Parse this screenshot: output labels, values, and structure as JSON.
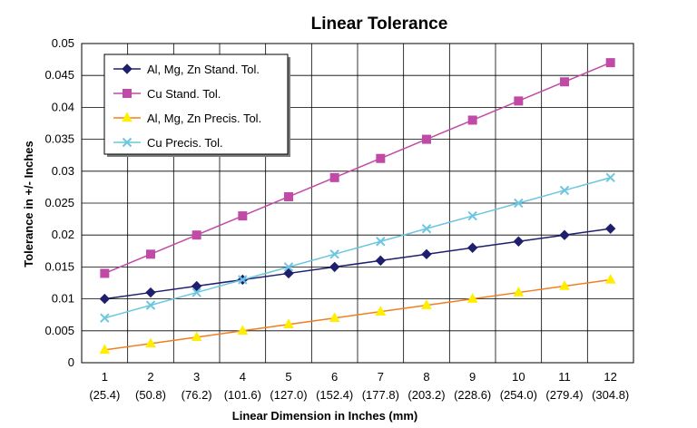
{
  "chart_data": {
    "type": "line",
    "title": "Linear Tolerance",
    "xlabel": "Linear Dimension in Inches (mm)",
    "ylabel": "Tolerance in +/- Inches",
    "categories": [
      "1",
      "2",
      "3",
      "4",
      "5",
      "6",
      "7",
      "8",
      "9",
      "10",
      "11",
      "12"
    ],
    "categories_mm": [
      "(25.4)",
      "(50.8)",
      "(76.2)",
      "(101.6)",
      "(127.0)",
      "(152.4)",
      "(177.8)",
      "(203.2)",
      "(228.6)",
      "(254.0)",
      "(279.4)",
      "(304.8)"
    ],
    "ylim": [
      0,
      0.05
    ],
    "yticks": [
      "0",
      "0.005",
      "0.01",
      "0.015",
      "0.02",
      "0.025",
      "0.03",
      "0.035",
      "0.04",
      "0.045",
      "0.05"
    ],
    "grid": true,
    "legend_position": "top-left",
    "series": [
      {
        "name": "Al, Mg, Zn Stand. Tol.",
        "color": "#1f1f6e",
        "marker": "diamond",
        "values": [
          0.01,
          0.011,
          0.012,
          0.013,
          0.014,
          0.015,
          0.016,
          0.017,
          0.018,
          0.019,
          0.02,
          0.021
        ]
      },
      {
        "name": "Cu Stand. Tol.",
        "color": "#c04aa6",
        "marker": "square",
        "values": [
          0.014,
          0.017,
          0.02,
          0.023,
          0.026,
          0.029,
          0.032,
          0.035,
          0.038,
          0.041,
          0.044,
          0.047
        ]
      },
      {
        "name": "Al, Mg, Zn Precis. Tol.",
        "color": "#f07f1e",
        "marker_color": "#ffee00",
        "marker": "triangle",
        "values": [
          0.002,
          0.003,
          0.004,
          0.005,
          0.006,
          0.007,
          0.008,
          0.009,
          0.01,
          0.011,
          0.012,
          0.013
        ]
      },
      {
        "name": "Cu Precis. Tol.",
        "color": "#6cc6e0",
        "marker": "x",
        "values": [
          0.007,
          0.009,
          0.011,
          0.013,
          0.015,
          0.017,
          0.019,
          0.021,
          0.023,
          0.025,
          0.027,
          0.029
        ]
      }
    ]
  }
}
